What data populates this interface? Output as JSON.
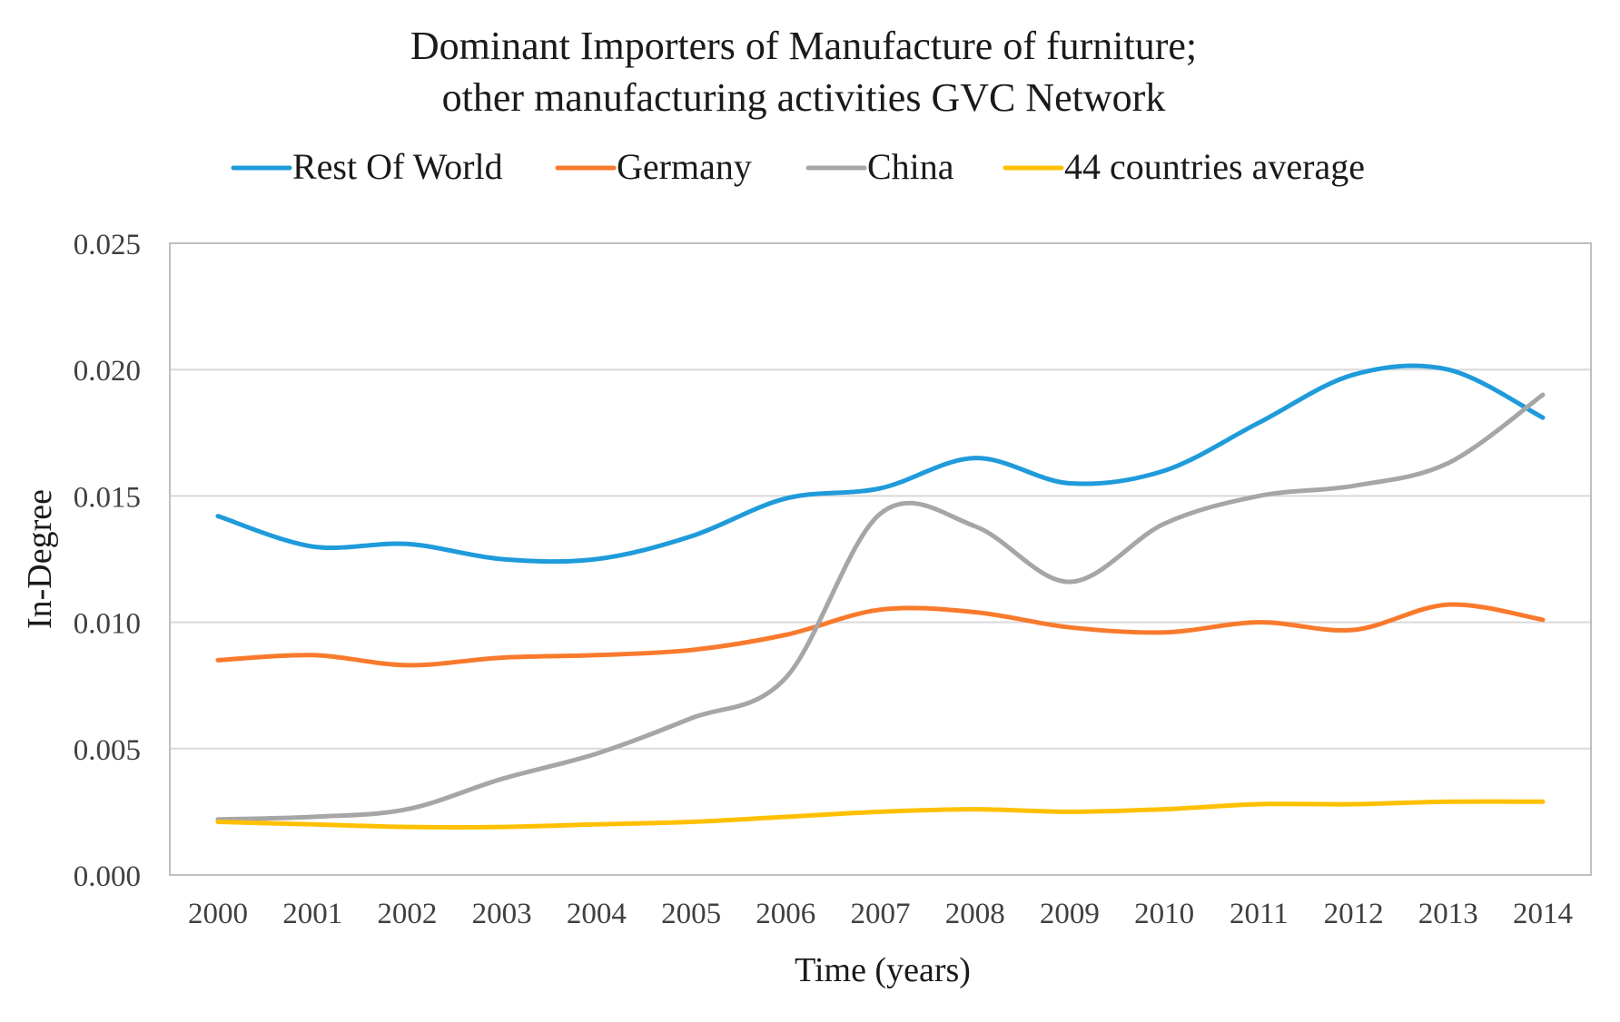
{
  "chart_data": {
    "type": "line",
    "title_lines": [
      "Dominant Importers of Manufacture of furniture;",
      "other manufacturing activities GVC Network"
    ],
    "xlabel": "Time (years)",
    "ylabel": "In-Degree",
    "categories": [
      "2000",
      "2001",
      "2002",
      "2003",
      "2004",
      "2005",
      "2006",
      "2007",
      "2008",
      "2009",
      "2010",
      "2011",
      "2012",
      "2013",
      "2014"
    ],
    "ylim": [
      0,
      0.025
    ],
    "yticks": [
      "0.000",
      "0.005",
      "0.010",
      "0.015",
      "0.020",
      "0.025"
    ],
    "ytick_values": [
      0,
      0.005,
      0.01,
      0.015,
      0.02,
      0.025
    ],
    "grid": true,
    "legend_position": "top",
    "series": [
      {
        "name": "Rest Of World",
        "color": "#1F9BDB",
        "values": [
          0.0142,
          0.013,
          0.0131,
          0.0125,
          0.0125,
          0.0134,
          0.0149,
          0.0153,
          0.0165,
          0.0155,
          0.016,
          0.0179,
          0.0198,
          0.02,
          0.0181
        ]
      },
      {
        "name": "Germany",
        "color": "#F97A2D",
        "values": [
          0.0085,
          0.0087,
          0.0083,
          0.0086,
          0.0087,
          0.0089,
          0.0095,
          0.0105,
          0.0104,
          0.0098,
          0.0096,
          0.01,
          0.0097,
          0.0107,
          0.0101
        ]
      },
      {
        "name": "China",
        "color": "#A6A6A6",
        "values": [
          0.0022,
          0.0023,
          0.0026,
          0.0038,
          0.0048,
          0.0062,
          0.0078,
          0.0143,
          0.0138,
          0.0116,
          0.0139,
          0.015,
          0.0154,
          0.0163,
          0.019
        ]
      },
      {
        "name": "44 countries average",
        "color": "#FFC000",
        "values": [
          0.0021,
          0.002,
          0.0019,
          0.0019,
          0.002,
          0.0021,
          0.0023,
          0.0025,
          0.0026,
          0.0025,
          0.0026,
          0.0028,
          0.0028,
          0.0029,
          0.0029
        ]
      }
    ]
  }
}
